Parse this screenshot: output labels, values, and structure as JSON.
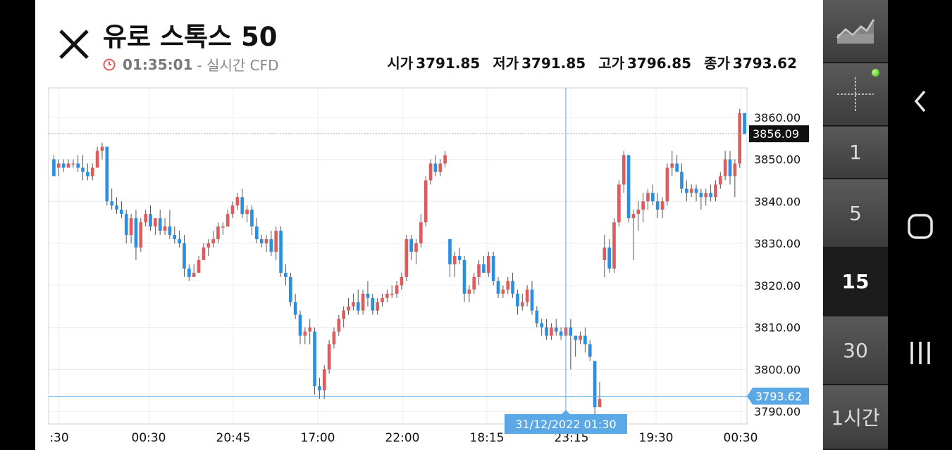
{
  "header": {
    "title": "유로 스톡스 50",
    "time": "01:35:01",
    "time_suffix": "- 실시간 CFD",
    "ohlc": [
      {
        "label": "시가",
        "value": "3791.85"
      },
      {
        "label": "저가",
        "value": "3791.85"
      },
      {
        "label": "고가",
        "value": "3796.85"
      },
      {
        "label": "종가",
        "value": "3793.62"
      }
    ]
  },
  "timeframes": {
    "items": [
      "1",
      "5",
      "15",
      "30",
      "1시간"
    ],
    "active": "15"
  },
  "colors": {
    "up": "#e05c5c",
    "down": "#2a8fe0",
    "crosshair": "#5aa8e6",
    "current_price_bg": "#111111"
  },
  "chart_data": {
    "type": "candlestick",
    "ylim": [
      3787,
      3867
    ],
    "y_ticks": [
      "3860.00",
      "3850.00",
      "3840.00",
      "3830.00",
      "3820.00",
      "3810.00",
      "3800.00",
      "3790.00"
    ],
    "x_ticks": [
      ":30",
      "00:30",
      "20:45",
      "17:00",
      "22:00",
      "18:15",
      "23:15",
      "19:30",
      "00:30"
    ],
    "current_price": "3856.09",
    "crosshair_price": "3793.62",
    "crosshair_time": "31/12/2022 01:30",
    "candles": [
      [
        3850,
        3851,
        3846,
        3846
      ],
      [
        3848,
        3850,
        3846,
        3849
      ],
      [
        3849,
        3850,
        3847,
        3848
      ],
      [
        3848,
        3850,
        3848,
        3849
      ],
      [
        3849,
        3850,
        3848,
        3849
      ],
      [
        3849,
        3851,
        3847,
        3848
      ],
      [
        3848,
        3851,
        3845,
        3847
      ],
      [
        3847,
        3849,
        3845,
        3846
      ],
      [
        3846,
        3849,
        3845,
        3848
      ],
      [
        3848,
        3853,
        3848,
        3852
      ],
      [
        3852,
        3854,
        3850,
        3853
      ],
      [
        3853,
        3853,
        3839,
        3840
      ],
      [
        3840,
        3843,
        3838,
        3839
      ],
      [
        3839,
        3841,
        3837,
        3838
      ],
      [
        3838,
        3840,
        3836,
        3837
      ],
      [
        3837,
        3838,
        3830,
        3832
      ],
      [
        3832,
        3837,
        3830,
        3836
      ],
      [
        3836,
        3838,
        3826,
        3829
      ],
      [
        3829,
        3836,
        3828,
        3835
      ],
      [
        3835,
        3838,
        3834,
        3837
      ],
      [
        3837,
        3839,
        3833,
        3834
      ],
      [
        3834,
        3836,
        3832,
        3836
      ],
      [
        3836,
        3838,
        3832,
        3833
      ],
      [
        3833,
        3836,
        3832,
        3834
      ],
      [
        3834,
        3838,
        3831,
        3832
      ],
      [
        3832,
        3834,
        3830,
        3831
      ],
      [
        3831,
        3833,
        3829,
        3830
      ],
      [
        3830,
        3832,
        3822,
        3824
      ],
      [
        3824,
        3825,
        3821,
        3822
      ],
      [
        3822,
        3825,
        3822,
        3823
      ],
      [
        3823,
        3827,
        3823,
        3826
      ],
      [
        3826,
        3830,
        3826,
        3829
      ],
      [
        3829,
        3831,
        3827,
        3830
      ],
      [
        3830,
        3833,
        3829,
        3831
      ],
      [
        3831,
        3835,
        3830,
        3834
      ],
      [
        3834,
        3835,
        3832,
        3834
      ],
      [
        3834,
        3838,
        3834,
        3837
      ],
      [
        3837,
        3840,
        3836,
        3839
      ],
      [
        3839,
        3842,
        3838,
        3841
      ],
      [
        3841,
        3843,
        3836,
        3837
      ],
      [
        3837,
        3839,
        3835,
        3838
      ],
      [
        3838,
        3839,
        3832,
        3834
      ],
      [
        3834,
        3836,
        3830,
        3831
      ],
      [
        3831,
        3832,
        3829,
        3830
      ],
      [
        3830,
        3832,
        3828,
        3831
      ],
      [
        3831,
        3833,
        3827,
        3828
      ],
      [
        3828,
        3834,
        3826,
        3833
      ],
      [
        3833,
        3834,
        3822,
        3823
      ],
      [
        3823,
        3825,
        3820,
        3822
      ],
      [
        3822,
        3823,
        3815,
        3816
      ],
      [
        3816,
        3818,
        3812,
        3813
      ],
      [
        3813,
        3814,
        3806,
        3808
      ],
      [
        3808,
        3810,
        3806,
        3809
      ],
      [
        3809,
        3812,
        3806,
        3810
      ],
      [
        3809,
        3810,
        3794,
        3796
      ],
      [
        3796,
        3798,
        3793,
        3795
      ],
      [
        3795,
        3801,
        3793,
        3800
      ],
      [
        3800,
        3807,
        3799,
        3806
      ],
      [
        3806,
        3810,
        3805,
        3809
      ],
      [
        3809,
        3813,
        3808,
        3812
      ],
      [
        3812,
        3815,
        3810,
        3814
      ],
      [
        3814,
        3817,
        3813,
        3815
      ],
      [
        3815,
        3818,
        3814,
        3816
      ],
      [
        3816,
        3819,
        3813,
        3814
      ],
      [
        3814,
        3819,
        3813,
        3818
      ],
      [
        3818,
        3821,
        3815,
        3817
      ],
      [
        3817,
        3818,
        3813,
        3814
      ],
      [
        3814,
        3817,
        3813,
        3816
      ],
      [
        3816,
        3818,
        3815,
        3817
      ],
      [
        3817,
        3819,
        3816,
        3818
      ],
      [
        3818,
        3820,
        3817,
        3818
      ],
      [
        3818,
        3821,
        3817,
        3820
      ],
      [
        3820,
        3823,
        3819,
        3822
      ],
      [
        3822,
        3832,
        3821,
        3831
      ],
      [
        3831,
        3832,
        3826,
        3828
      ],
      [
        3828,
        3831,
        3825,
        3830
      ],
      [
        3830,
        3837,
        3829,
        3835
      ],
      [
        3835,
        3846,
        3834,
        3845
      ],
      [
        3845,
        3850,
        3844,
        3849
      ],
      [
        3849,
        3851,
        3846,
        3847
      ],
      [
        3847,
        3850,
        3846,
        3849
      ],
      [
        3849,
        3852,
        3848,
        3851
      ],
      [
        3831,
        3831,
        3822,
        3825
      ],
      [
        3825,
        3828,
        3822,
        3827
      ],
      [
        3827,
        3829,
        3825,
        3826
      ],
      [
        3826,
        3827,
        3816,
        3818
      ],
      [
        3818,
        3820,
        3816,
        3819
      ],
      [
        3819,
        3823,
        3818,
        3822
      ],
      [
        3822,
        3826,
        3820,
        3825
      ],
      [
        3825,
        3827,
        3823,
        3823
      ],
      [
        3823,
        3828,
        3822,
        3827
      ],
      [
        3827,
        3828,
        3820,
        3821
      ],
      [
        3821,
        3822,
        3817,
        3818
      ],
      [
        3818,
        3820,
        3817,
        3819
      ],
      [
        3819,
        3822,
        3818,
        3821
      ],
      [
        3821,
        3823,
        3817,
        3818
      ],
      [
        3818,
        3819,
        3813,
        3815
      ],
      [
        3815,
        3818,
        3814,
        3816
      ],
      [
        3816,
        3820,
        3815,
        3819
      ],
      [
        3819,
        3821,
        3813,
        3814
      ],
      [
        3814,
        3815,
        3810,
        3811
      ],
      [
        3811,
        3812,
        3808,
        3810
      ],
      [
        3810,
        3812,
        3807,
        3808
      ],
      [
        3808,
        3811,
        3807,
        3810
      ],
      [
        3810,
        3812,
        3808,
        3809
      ],
      [
        3809,
        3810,
        3807,
        3808
      ],
      [
        3808,
        3811,
        3807,
        3810
      ],
      [
        3810,
        3812,
        3800,
        3808
      ],
      [
        3808,
        3808,
        3803,
        3807
      ],
      [
        3807,
        3809,
        3806,
        3808
      ],
      [
        3808,
        3810,
        3804,
        3806
      ],
      [
        3806,
        3807,
        3802,
        3803
      ],
      [
        3802,
        3802,
        3789,
        3791
      ],
      [
        3791,
        3797,
        3791,
        3793
      ],
      [
        3826,
        3832,
        3822,
        3829
      ],
      [
        3829,
        3831,
        3823,
        3824
      ],
      [
        3824,
        3836,
        3823,
        3835
      ],
      [
        3835,
        3845,
        3834,
        3844
      ],
      [
        3844,
        3852,
        3842,
        3851
      ],
      [
        3851,
        3851,
        3835,
        3836
      ],
      [
        3836,
        3838,
        3826,
        3837
      ],
      [
        3837,
        3840,
        3833,
        3838
      ],
      [
        3838,
        3842,
        3835,
        3840
      ],
      [
        3840,
        3843,
        3838,
        3842
      ],
      [
        3842,
        3844,
        3839,
        3840
      ],
      [
        3840,
        3842,
        3836,
        3838
      ],
      [
        3838,
        3841,
        3836,
        3840
      ],
      [
        3840,
        3849,
        3839,
        3848
      ],
      [
        3848,
        3852,
        3846,
        3849
      ],
      [
        3849,
        3851,
        3847,
        3847
      ],
      [
        3847,
        3849,
        3842,
        3843
      ],
      [
        3843,
        3845,
        3840,
        3842
      ],
      [
        3842,
        3844,
        3841,
        3843
      ],
      [
        3843,
        3844,
        3840,
        3842
      ],
      [
        3842,
        3843,
        3838,
        3841
      ],
      [
        3841,
        3843,
        3839,
        3842
      ],
      [
        3842,
        3844,
        3840,
        3841
      ],
      [
        3841,
        3845,
        3840,
        3844
      ],
      [
        3844,
        3847,
        3843,
        3846
      ],
      [
        3846,
        3852,
        3845,
        3850
      ],
      [
        3850,
        3852,
        3844,
        3846
      ],
      [
        3846,
        3850,
        3841,
        3849
      ],
      [
        3849,
        3862,
        3848,
        3861
      ],
      [
        3861,
        3861,
        3856,
        3856
      ]
    ]
  }
}
